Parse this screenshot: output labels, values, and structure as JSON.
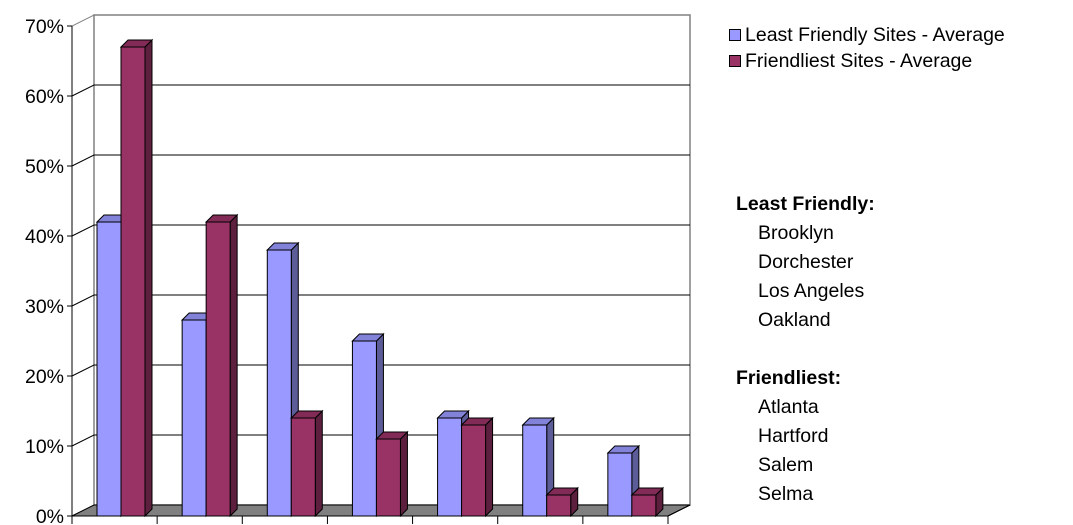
{
  "chart_data": {
    "type": "bar",
    "title": "",
    "xlabel": "",
    "ylabel": "",
    "categories": [
      "",
      "",
      "",
      "",
      "",
      "",
      ""
    ],
    "series": [
      {
        "name": "Least Friendly Sites - Average",
        "color": "#9999ff",
        "values": [
          0.42,
          0.28,
          0.38,
          0.25,
          0.14,
          0.13,
          0.09
        ]
      },
      {
        "name": "Friendliest Sites - Average",
        "color": "#993366",
        "values": [
          0.67,
          0.42,
          0.14,
          0.11,
          0.13,
          0.03,
          0.03
        ]
      }
    ],
    "ylim": [
      0,
      0.7
    ],
    "yticks": [
      "0%",
      "10%",
      "20%",
      "30%",
      "40%",
      "50%",
      "60%",
      "70%"
    ],
    "grid": true,
    "legend": "top-right",
    "style": "3d-clustered-column"
  },
  "notes": {
    "groups": [
      {
        "title": "Least Friendly:",
        "items": [
          "Brooklyn",
          "Dorchester",
          "Los Angeles",
          "Oakland"
        ]
      },
      {
        "title": "Friendliest:",
        "items": [
          "Atlanta",
          "Hartford",
          "Salem",
          "Selma"
        ]
      }
    ]
  }
}
